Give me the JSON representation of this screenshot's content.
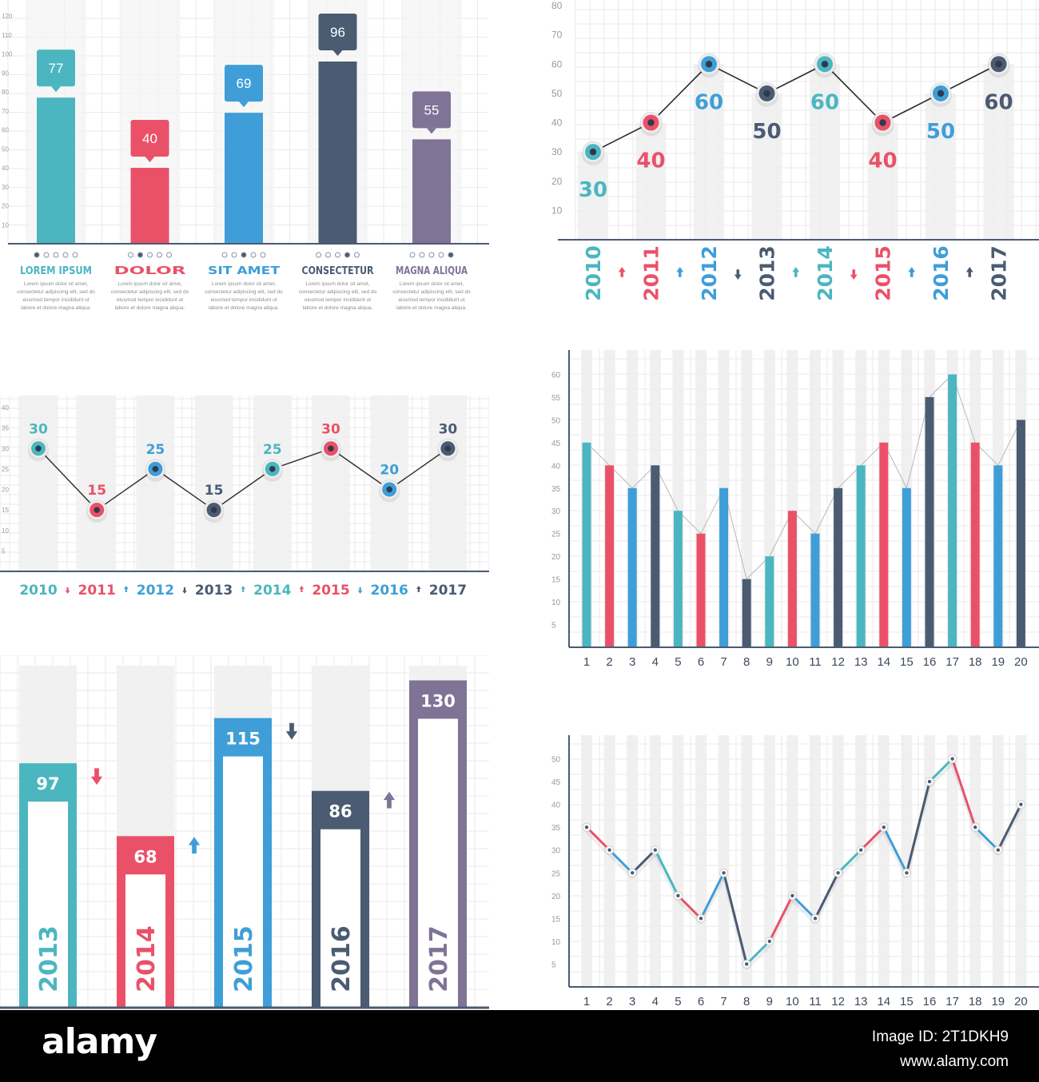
{
  "colors": {
    "teal": "#4bb6c0",
    "pink": "#ea5168",
    "blue": "#3f9ed8",
    "navy": "#4a5b72",
    "purple": "#7f7396",
    "axis": "#4a5b72",
    "grid": "#e9e9e9",
    "column": "#f2f2f2"
  },
  "chart_data": [
    {
      "type": "bar",
      "categories": [
        "LOREM IPSUM",
        "DOLOR",
        "SIT AMET",
        "CONSECTETUR",
        "MAGNA ALIQUA"
      ],
      "values": [
        77,
        40,
        69,
        96,
        55
      ],
      "category_colors": [
        "#4bb6c0",
        "#ea5168",
        "#3f9ed8",
        "#4a5b72",
        "#7f7396"
      ],
      "description_lines": [
        "Lorem ipsum dolor sit amet,",
        "consectetur adipiscing elit, sed do",
        "eiusmod tempor incididunt ut",
        "labore et dolore magna aliqua."
      ],
      "ylim": [
        0,
        120
      ],
      "yticks": [
        10,
        20,
        30,
        40,
        50,
        60,
        70,
        80,
        90,
        100,
        110,
        120
      ],
      "grid": true,
      "dots_per_category": 5,
      "active_dot": [
        1,
        2,
        3,
        4,
        5
      ]
    },
    {
      "type": "line",
      "x": [
        "2010",
        "2011",
        "2012",
        "2013",
        "2014",
        "2015",
        "2016",
        "2017"
      ],
      "values": [
        30,
        40,
        60,
        50,
        60,
        40,
        50,
        60
      ],
      "point_colors": [
        "#4bb6c0",
        "#ea5168",
        "#3f9ed8",
        "#4a5b72",
        "#4bb6c0",
        "#ea5168",
        "#3f9ed8",
        "#4a5b72"
      ],
      "trend_arrows": [
        "up",
        "up",
        "down",
        "up",
        "down",
        "up",
        "up"
      ],
      "ylim": [
        0,
        80
      ],
      "yticks": [
        10,
        20,
        30,
        40,
        50,
        60,
        70,
        80
      ],
      "grid": true
    },
    {
      "type": "line",
      "x": [
        "2010",
        "2011",
        "2012",
        "2013",
        "2014",
        "2015",
        "2016",
        "2017"
      ],
      "values": [
        30,
        15,
        25,
        15,
        25,
        30,
        20,
        30
      ],
      "point_colors": [
        "#4bb6c0",
        "#ea5168",
        "#3f9ed8",
        "#4a5b72",
        "#4bb6c0",
        "#ea5168",
        "#3f9ed8",
        "#4a5b72"
      ],
      "trend_arrows": [
        "down",
        "up",
        "down",
        "up",
        "up",
        "down",
        "up"
      ],
      "ylim": [
        0,
        40
      ],
      "yticks": [
        5,
        10,
        15,
        20,
        25,
        30,
        35,
        40
      ],
      "grid": true
    },
    {
      "type": "bar",
      "categories": [
        "1",
        "2",
        "3",
        "4",
        "5",
        "6",
        "7",
        "8",
        "9",
        "10",
        "11",
        "12",
        "13",
        "14",
        "15",
        "16",
        "17",
        "18",
        "19",
        "20"
      ],
      "values": [
        45,
        40,
        35,
        40,
        30,
        25,
        35,
        15,
        20,
        30,
        25,
        35,
        40,
        45,
        35,
        55,
        60,
        45,
        40,
        50
      ],
      "bar_colors": [
        "#4bb6c0",
        "#ea5168",
        "#3f9ed8",
        "#4a5b72",
        "#4bb6c0",
        "#ea5168",
        "#3f9ed8",
        "#4a5b72",
        "#4bb6c0",
        "#ea5168",
        "#3f9ed8",
        "#4a5b72",
        "#4bb6c0",
        "#ea5168",
        "#3f9ed8",
        "#4a5b72",
        "#4bb6c0",
        "#ea5168",
        "#3f9ed8",
        "#4a5b72"
      ],
      "ylim": [
        0,
        65
      ],
      "yticks": [
        5,
        10,
        15,
        20,
        25,
        30,
        35,
        40,
        45,
        50,
        55,
        60
      ],
      "grid": true,
      "connector_line": true
    },
    {
      "type": "bar",
      "categories": [
        "2013",
        "2014",
        "2015",
        "2016",
        "2017"
      ],
      "values": [
        97,
        68,
        115,
        86,
        130
      ],
      "category_colors": [
        "#4bb6c0",
        "#ea5168",
        "#3f9ed8",
        "#4a5b72",
        "#7f7396"
      ],
      "trend_arrows": [
        "down",
        "up",
        "down",
        "up"
      ],
      "ylim": [
        0,
        140
      ],
      "grid": true
    },
    {
      "type": "line",
      "x": [
        "1",
        "2",
        "3",
        "4",
        "5",
        "6",
        "7",
        "8",
        "9",
        "10",
        "11",
        "12",
        "13",
        "14",
        "15",
        "16",
        "17",
        "18",
        "19",
        "20"
      ],
      "values": [
        35,
        30,
        25,
        30,
        20,
        15,
        25,
        5,
        10,
        20,
        15,
        25,
        30,
        35,
        25,
        45,
        50,
        35,
        30,
        40
      ],
      "segment_colors": [
        "#ea5168",
        "#3f9ed8",
        "#4a5b72",
        "#4bb6c0",
        "#ea5168",
        "#3f9ed8",
        "#4a5b72",
        "#4bb6c0",
        "#ea5168",
        "#3f9ed8",
        "#4a5b72",
        "#4bb6c0",
        "#ea5168",
        "#3f9ed8",
        "#4a5b72",
        "#4bb6c0",
        "#ea5168",
        "#3f9ed8",
        "#4a5b72"
      ],
      "ylim": [
        0,
        55
      ],
      "yticks": [
        5,
        10,
        15,
        20,
        25,
        30,
        35,
        40,
        45,
        50
      ],
      "grid": true
    }
  ],
  "footer": {
    "brand": "alamy",
    "image_id": "Image ID: 2T1DKH9",
    "url": "www.alamy.com"
  }
}
